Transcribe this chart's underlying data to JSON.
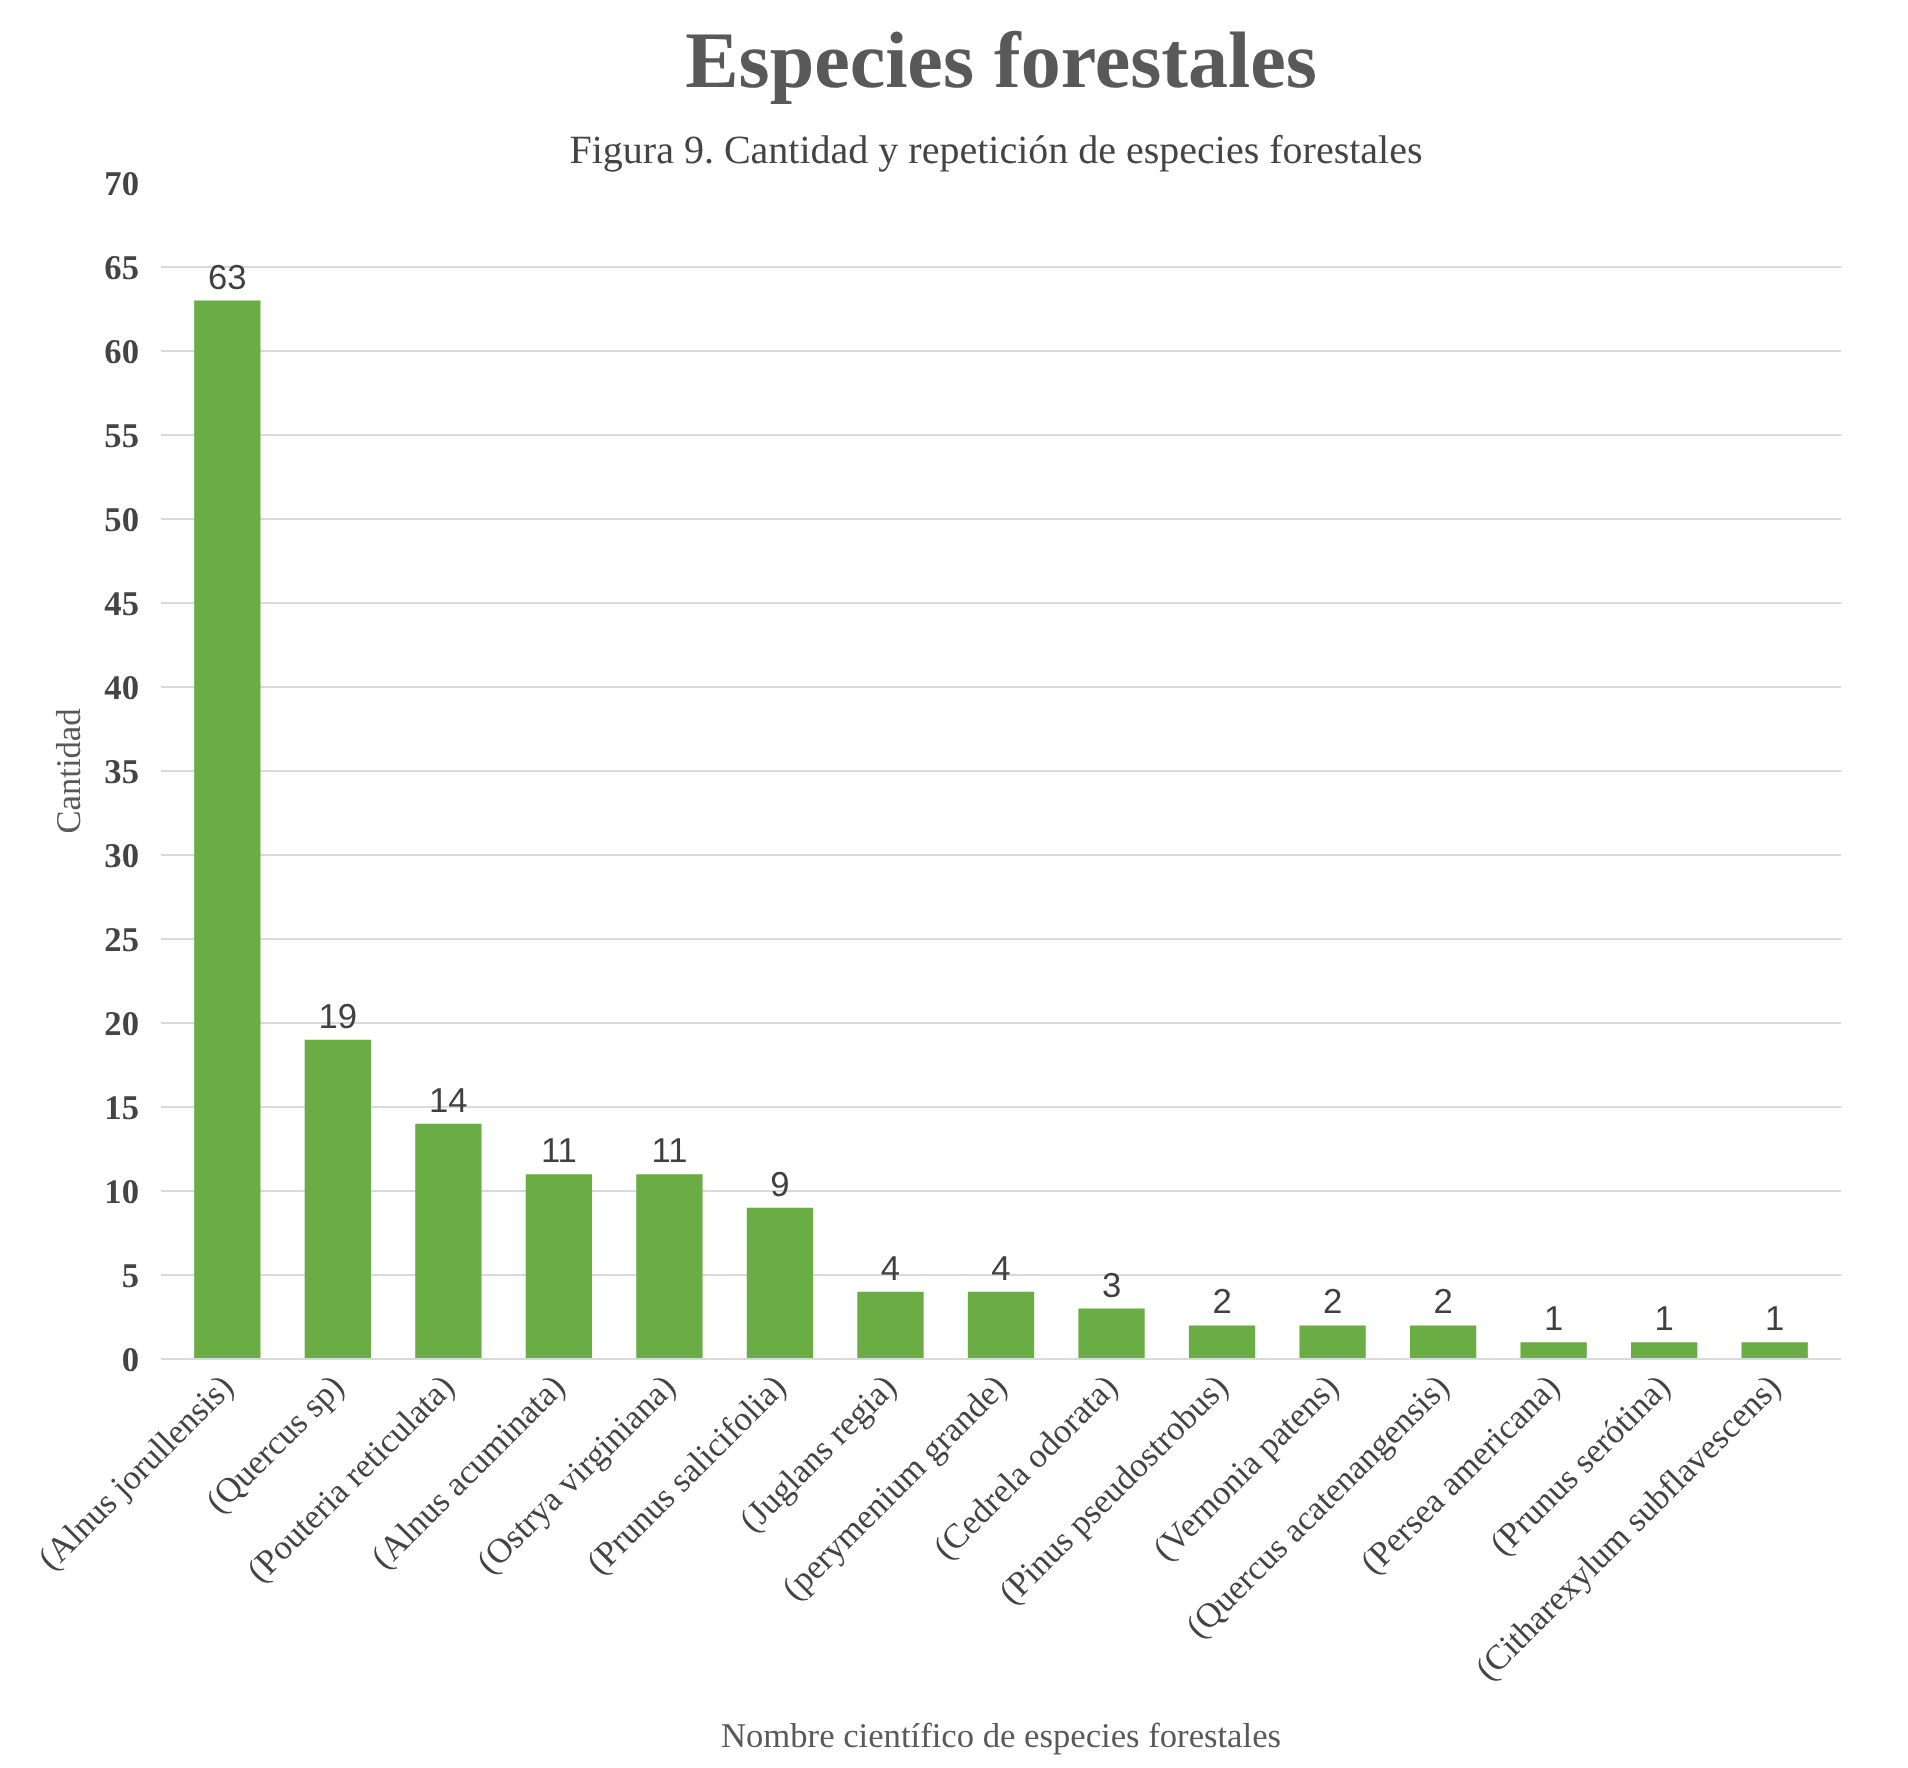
{
  "chart_data": {
    "type": "bar",
    "title": "Especies forestales",
    "xlabel": "Nombre científico de especies forestales",
    "ylabel": "Cantidad",
    "annotations": [
      "Figura 9.  Cantidad y repetición de especies forestales"
    ],
    "categories": [
      "(Alnus jorullensis)",
      "(Quercus sp)",
      "(Pouteria reticulata)",
      "(Alnus acuminata)",
      "(Ostrya virginiana)",
      "(Prunus salicifolia)",
      "(Juglans regia)",
      "(perymenium grande)",
      "(Cedrela odorata)",
      "(Pinus pseudostrobus)",
      "(Vernonia patens)",
      "(Quercus acatenangensis)",
      "(Persea americana)",
      "(Prunus serótina)",
      "(Citharexylum subflavescens)"
    ],
    "values": [
      63,
      19,
      14,
      11,
      11,
      9,
      4,
      4,
      3,
      2,
      2,
      2,
      1,
      1,
      1
    ],
    "color": "#6aad44",
    "ylim": [
      0,
      70
    ],
    "yticks": [
      0,
      5,
      10,
      15,
      20,
      25,
      30,
      35,
      40,
      45,
      50,
      55,
      60,
      65,
      70
    ],
    "grid": "y",
    "data_labels": true
  }
}
